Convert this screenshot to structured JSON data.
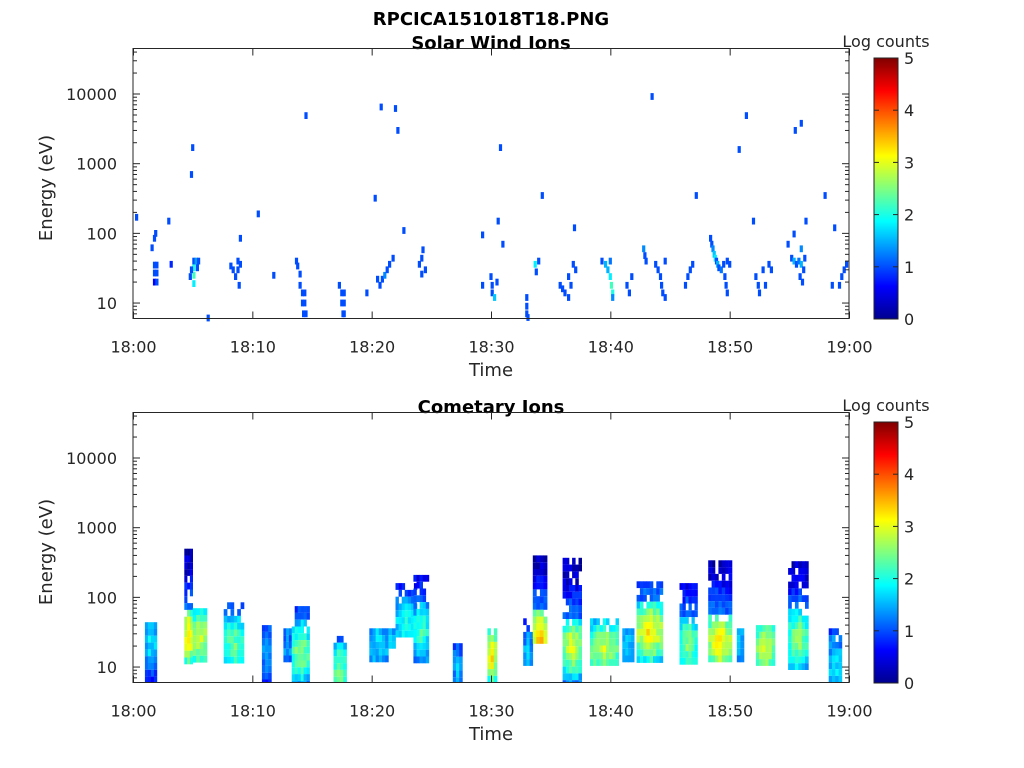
{
  "figure_title": "RPCICA151018T18.PNG",
  "chart_data": [
    {
      "type": "heatmap",
      "title": "Solar Wind Ions",
      "xlabel": "Time",
      "ylabel": "Energy (eV)",
      "x_tick_labels": [
        "18:00",
        "18:10",
        "18:20",
        "18:30",
        "18:40",
        "18:50",
        "19:00"
      ],
      "xlim_minutes": [
        0,
        60
      ],
      "y_tick_labels": [
        "10",
        "100",
        "1000",
        "10000"
      ],
      "y_tick_values": [
        10,
        100,
        1000,
        10000
      ],
      "ylim": [
        6,
        45000
      ],
      "y_scale": "log",
      "colorbar": {
        "label": "Log counts",
        "ticks": [
          "0",
          "1",
          "2",
          "3",
          "4",
          "5"
        ],
        "range": [
          0,
          5
        ],
        "colormap": "jet"
      },
      "cells": [
        [
          0.3,
          170,
          1
        ],
        [
          1.6,
          62,
          1
        ],
        [
          1.8,
          85,
          1
        ],
        [
          1.9,
          100,
          1
        ],
        [
          1.8,
          35,
          1
        ],
        [
          1.8,
          27,
          1
        ],
        [
          1.8,
          20,
          0.6
        ],
        [
          2.0,
          35,
          1
        ],
        [
          2.0,
          27,
          1
        ],
        [
          2.0,
          20,
          1
        ],
        [
          3.0,
          150,
          1
        ],
        [
          3.2,
          36,
          0.8
        ],
        [
          5.0,
          1700,
          1
        ],
        [
          4.9,
          700,
          1
        ],
        [
          5.1,
          40,
          1
        ],
        [
          5.1,
          32,
          2
        ],
        [
          5.1,
          25,
          2.2
        ],
        [
          5.1,
          19,
          1.8
        ],
        [
          5.3,
          40,
          1.4
        ],
        [
          5.4,
          32,
          1
        ],
        [
          4.9,
          30,
          1
        ],
        [
          4.8,
          24,
          1
        ],
        [
          5.5,
          40,
          1
        ],
        [
          6.3,
          6.1,
          1
        ],
        [
          8.2,
          34,
          1
        ],
        [
          8.4,
          30,
          1
        ],
        [
          8.6,
          24,
          1
        ],
        [
          8.8,
          40,
          1
        ],
        [
          8.8,
          30,
          1
        ],
        [
          9.0,
          36,
          1
        ],
        [
          8.9,
          18,
          1
        ],
        [
          9.0,
          85,
          1
        ],
        [
          10.5,
          190,
          1
        ],
        [
          11.8,
          25,
          1
        ],
        [
          13.7,
          40,
          1
        ],
        [
          13.8,
          34,
          1
        ],
        [
          14.0,
          26,
          1
        ],
        [
          14.0,
          18,
          1
        ],
        [
          14.2,
          14,
          1
        ],
        [
          14.2,
          10,
          1
        ],
        [
          14.3,
          7,
          1
        ],
        [
          14.4,
          14,
          1
        ],
        [
          14.4,
          10,
          1
        ],
        [
          14.5,
          7,
          1
        ],
        [
          14.5,
          4900,
          1
        ],
        [
          17.3,
          18,
          1
        ],
        [
          17.5,
          14,
          1
        ],
        [
          17.5,
          10,
          1
        ],
        [
          17.6,
          7,
          1
        ],
        [
          17.7,
          14,
          1
        ],
        [
          17.7,
          10,
          1
        ],
        [
          17.7,
          7,
          1
        ],
        [
          19.6,
          14,
          1
        ],
        [
          20.3,
          320,
          1
        ],
        [
          20.5,
          22,
          1
        ],
        [
          20.7,
          18,
          1
        ],
        [
          20.9,
          22,
          1
        ],
        [
          21.1,
          25,
          1.3
        ],
        [
          21.3,
          30,
          1
        ],
        [
          21.5,
          36,
          1
        ],
        [
          21.8,
          44,
          1
        ],
        [
          20.8,
          6500,
          1
        ],
        [
          22.0,
          6200,
          1
        ],
        [
          22.2,
          3000,
          1
        ],
        [
          22.7,
          110,
          1
        ],
        [
          24.0,
          36,
          1
        ],
        [
          24.2,
          44,
          1
        ],
        [
          24.3,
          58,
          1
        ],
        [
          24.5,
          30,
          1
        ],
        [
          24.2,
          26,
          1
        ],
        [
          29.3,
          95,
          1
        ],
        [
          29.3,
          18,
          1
        ],
        [
          30.0,
          24,
          1
        ],
        [
          30.1,
          18,
          1
        ],
        [
          30.1,
          14,
          1
        ],
        [
          30.3,
          12,
          1.6
        ],
        [
          30.5,
          20,
          1
        ],
        [
          30.6,
          150,
          1
        ],
        [
          30.8,
          1700,
          1
        ],
        [
          31.0,
          70,
          1
        ],
        [
          33.0,
          12,
          1
        ],
        [
          33.0,
          9,
          1
        ],
        [
          33.0,
          7,
          1
        ],
        [
          33.1,
          6.2,
          1
        ],
        [
          33.7,
          36,
          1.8
        ],
        [
          33.8,
          28,
          1
        ],
        [
          34.0,
          40,
          1
        ],
        [
          34.3,
          350,
          1
        ],
        [
          35.8,
          18,
          1
        ],
        [
          36.0,
          16,
          1
        ],
        [
          36.2,
          14,
          1
        ],
        [
          36.5,
          12,
          1
        ],
        [
          36.5,
          24,
          1
        ],
        [
          36.7,
          18,
          1
        ],
        [
          36.9,
          36,
          1
        ],
        [
          37.1,
          30,
          1
        ],
        [
          37.0,
          120,
          1
        ],
        [
          39.3,
          40,
          1
        ],
        [
          39.6,
          36,
          1.5
        ],
        [
          39.8,
          30,
          1.5
        ],
        [
          40.0,
          24,
          1.8
        ],
        [
          40.1,
          18,
          2.2
        ],
        [
          40.2,
          14,
          2
        ],
        [
          40.2,
          12,
          1.3
        ],
        [
          40.0,
          40,
          1.2
        ],
        [
          41.4,
          18,
          1
        ],
        [
          41.6,
          14,
          1
        ],
        [
          41.8,
          24,
          1
        ],
        [
          42.8,
          60,
          1.3
        ],
        [
          42.9,
          48,
          1
        ],
        [
          43.0,
          40,
          1
        ],
        [
          43.5,
          9200,
          1
        ],
        [
          43.8,
          36,
          1
        ],
        [
          44.0,
          30,
          1
        ],
        [
          44.2,
          24,
          1
        ],
        [
          44.3,
          18,
          1
        ],
        [
          44.4,
          14,
          1
        ],
        [
          44.6,
          12,
          1
        ],
        [
          44.6,
          40,
          1
        ],
        [
          46.3,
          18,
          1
        ],
        [
          46.5,
          24,
          1
        ],
        [
          46.7,
          30,
          1
        ],
        [
          46.9,
          36,
          1
        ],
        [
          47.2,
          350,
          1
        ],
        [
          48.4,
          85,
          1
        ],
        [
          48.5,
          70,
          1
        ],
        [
          48.6,
          60,
          1.3
        ],
        [
          48.7,
          50,
          1.6
        ],
        [
          48.8,
          44,
          1.8
        ],
        [
          48.9,
          40,
          1
        ],
        [
          49.0,
          36,
          1.5
        ],
        [
          49.1,
          32,
          1
        ],
        [
          49.3,
          30,
          1.2
        ],
        [
          49.5,
          36,
          1
        ],
        [
          49.6,
          24,
          1
        ],
        [
          49.7,
          18,
          1
        ],
        [
          49.8,
          14,
          1
        ],
        [
          49.8,
          40,
          1
        ],
        [
          50.0,
          36,
          1
        ],
        [
          50.8,
          1600,
          1
        ],
        [
          51.4,
          4900,
          1
        ],
        [
          52.0,
          150,
          1
        ],
        [
          52.2,
          24,
          1
        ],
        [
          52.4,
          18,
          1
        ],
        [
          52.5,
          14,
          1
        ],
        [
          52.8,
          30,
          1
        ],
        [
          53.0,
          18,
          1
        ],
        [
          53.3,
          36,
          1
        ],
        [
          53.5,
          30,
          1
        ],
        [
          54.9,
          70,
          1
        ],
        [
          55.2,
          44,
          1
        ],
        [
          55.4,
          40,
          1.5
        ],
        [
          55.6,
          36,
          1
        ],
        [
          55.8,
          40,
          1.2
        ],
        [
          56.0,
          36,
          1.5
        ],
        [
          56.2,
          30,
          1
        ],
        [
          56.3,
          44,
          1
        ],
        [
          55.9,
          24,
          1
        ],
        [
          56.1,
          20,
          1
        ],
        [
          55.4,
          98,
          1
        ],
        [
          56.0,
          60,
          1.3
        ],
        [
          56.4,
          150,
          1
        ],
        [
          55.5,
          3000,
          1
        ],
        [
          56.0,
          3800,
          1
        ],
        [
          58.0,
          350,
          1
        ],
        [
          58.6,
          18,
          1
        ],
        [
          58.8,
          120,
          1
        ],
        [
          59.2,
          18,
          1
        ],
        [
          59.4,
          24,
          1
        ],
        [
          59.6,
          30,
          1
        ],
        [
          59.8,
          36,
          1
        ]
      ]
    },
    {
      "type": "heatmap",
      "title": "Cometary Ions",
      "xlabel": "Time",
      "ylabel": "Energy (eV)",
      "x_tick_labels": [
        "18:00",
        "18:10",
        "18:20",
        "18:30",
        "18:40",
        "18:50",
        "19:00"
      ],
      "xlim_minutes": [
        0,
        60
      ],
      "y_tick_labels": [
        "10",
        "100",
        "1000",
        "10000"
      ],
      "y_tick_values": [
        10,
        100,
        1000,
        10000
      ],
      "ylim": [
        6,
        45000
      ],
      "y_scale": "log",
      "colorbar": {
        "label": "Log counts",
        "ticks": [
          "0",
          "1",
          "2",
          "3",
          "4",
          "5"
        ],
        "range": [
          0,
          5
        ],
        "colormap": "jet"
      },
      "columns": [
        {
          "t": [
            1.0,
            2.0
          ],
          "lo": 6,
          "hi": 44,
          "peak": 1.6,
          "pe": 28
        },
        {
          "t": [
            4.3,
            5.0
          ],
          "lo": 12,
          "hi": 500,
          "peak": 3.2,
          "pe": 30
        },
        {
          "t": [
            5.0,
            6.2
          ],
          "lo": 12,
          "hi": 70,
          "peak": 2.8,
          "pe": 30
        },
        {
          "t": [
            7.6,
            9.3
          ],
          "lo": 12,
          "hi": 85,
          "peak": 2.2,
          "pe": 24
        },
        {
          "t": [
            10.8,
            11.6
          ],
          "lo": 6,
          "hi": 40,
          "peak": 1.2,
          "pe": 20
        },
        {
          "t": [
            12.6,
            13.3
          ],
          "lo": 12,
          "hi": 36,
          "peak": 1.2,
          "pe": 20
        },
        {
          "t": [
            13.3,
            14.8
          ],
          "lo": 6,
          "hi": 75,
          "peak": 2.4,
          "pe": 18
        },
        {
          "t": [
            16.8,
            17.9
          ],
          "lo": 6,
          "hi": 28,
          "peak": 2.3,
          "pe": 10
        },
        {
          "t": [
            19.8,
            21.4
          ],
          "lo": 12,
          "hi": 36,
          "peak": 1.5,
          "pe": 24
        },
        {
          "t": [
            21.4,
            22.0
          ],
          "lo": 22,
          "hi": 36,
          "peak": 1.4,
          "pe": 28
        },
        {
          "t": [
            22.0,
            23.8
          ],
          "lo": 30,
          "hi": 160,
          "peak": 1.8,
          "pe": 40
        },
        {
          "t": [
            23.5,
            24.8
          ],
          "lo": 12,
          "hi": 210,
          "peak": 2.0,
          "pe": 36
        },
        {
          "t": [
            26.8,
            27.6
          ],
          "lo": 6,
          "hi": 22,
          "peak": 1.3,
          "pe": 10
        },
        {
          "t": [
            29.7,
            30.5
          ],
          "lo": 6,
          "hi": 36,
          "peak": 3.0,
          "pe": 16
        },
        {
          "t": [
            32.7,
            33.5
          ],
          "lo": 12,
          "hi": 50,
          "peak": 1.5,
          "pe": 14
        },
        {
          "t": [
            33.5,
            34.7
          ],
          "lo": 22,
          "hi": 400,
          "peak": 3.4,
          "pe": 28
        },
        {
          "t": [
            36.0,
            37.6
          ],
          "lo": 6,
          "hi": 370,
          "peak": 2.8,
          "pe": 22
        },
        {
          "t": [
            38.3,
            40.7
          ],
          "lo": 12,
          "hi": 50,
          "peak": 2.6,
          "pe": 20
        },
        {
          "t": [
            41.0,
            42.0
          ],
          "lo": 12,
          "hi": 36,
          "peak": 1.5,
          "pe": 20
        },
        {
          "t": [
            42.2,
            44.4
          ],
          "lo": 14,
          "hi": 170,
          "peak": 3.0,
          "pe": 36
        },
        {
          "t": [
            45.8,
            47.3
          ],
          "lo": 12,
          "hi": 160,
          "peak": 2.3,
          "pe": 24
        },
        {
          "t": [
            48.2,
            50.2
          ],
          "lo": 12,
          "hi": 340,
          "peak": 3.0,
          "pe": 26
        },
        {
          "t": [
            50.6,
            51.2
          ],
          "lo": 14,
          "hi": 36,
          "peak": 1.5,
          "pe": 24
        },
        {
          "t": [
            52.2,
            53.8
          ],
          "lo": 12,
          "hi": 40,
          "peak": 2.7,
          "pe": 20
        },
        {
          "t": [
            54.9,
            56.6
          ],
          "lo": 10,
          "hi": 330,
          "peak": 2.4,
          "pe": 28
        },
        {
          "t": [
            58.3,
            59.4
          ],
          "lo": 6,
          "hi": 36,
          "peak": 1.6,
          "pe": 12
        }
      ]
    }
  ]
}
